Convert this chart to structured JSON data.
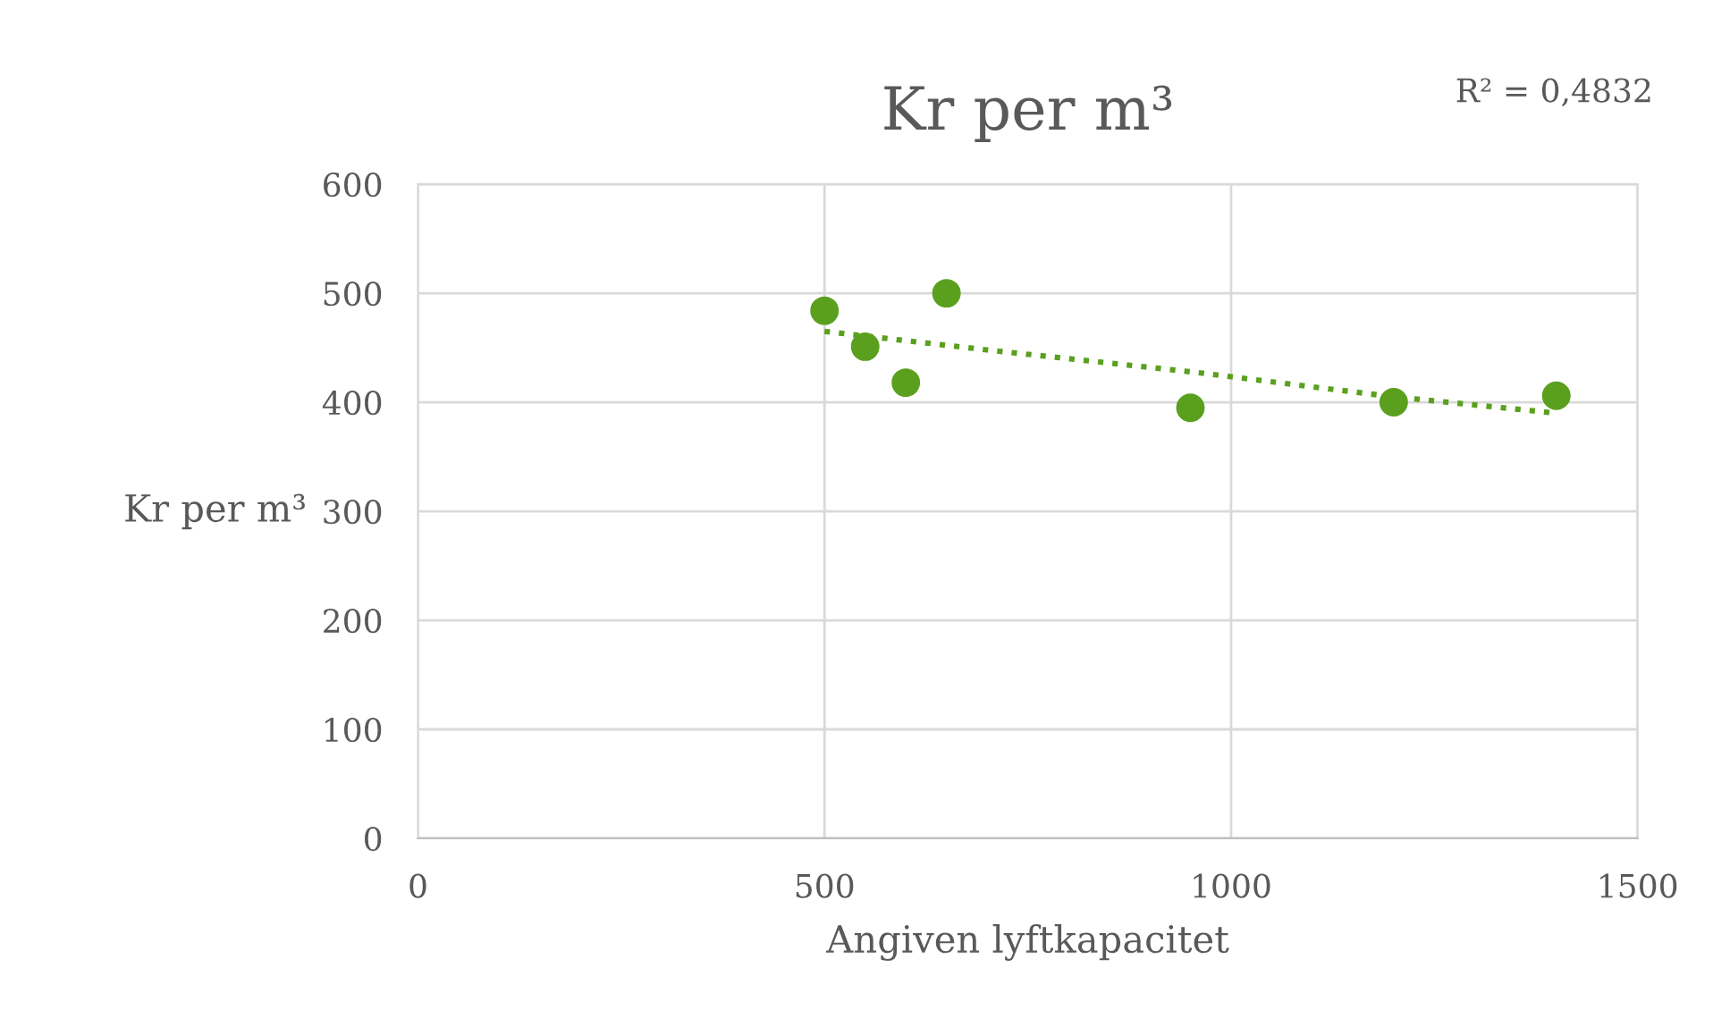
{
  "chart_data": {
    "type": "scatter",
    "title": "Kr per m³",
    "xlabel": "Angiven lyftkapacitet",
    "ylabel": "Kr per m³",
    "annotations": [
      "R² = 0,4832"
    ],
    "series": [
      {
        "color": "#5aa01e",
        "x": [
          500,
          550,
          600,
          650,
          950,
          1200,
          1400
        ],
        "values": [
          484,
          451,
          418,
          500,
          395,
          400,
          406
        ],
        "marker": "circle"
      },
      {
        "type": "line",
        "color": "#5aa01e",
        "x": [
          500,
          700,
          950,
          1200,
          1400
        ],
        "values": [
          465,
          448,
          428,
          405,
          390
        ],
        "line_style": "dotted",
        "marker": "none"
      }
    ],
    "xlim": [
      0,
      1500
    ],
    "xticks": [
      0,
      500,
      1000,
      1500
    ],
    "ylim": [
      0,
      600
    ],
    "yticks": [
      0,
      100,
      200,
      300,
      400,
      500,
      600
    ],
    "grid": true,
    "legend": false
  }
}
